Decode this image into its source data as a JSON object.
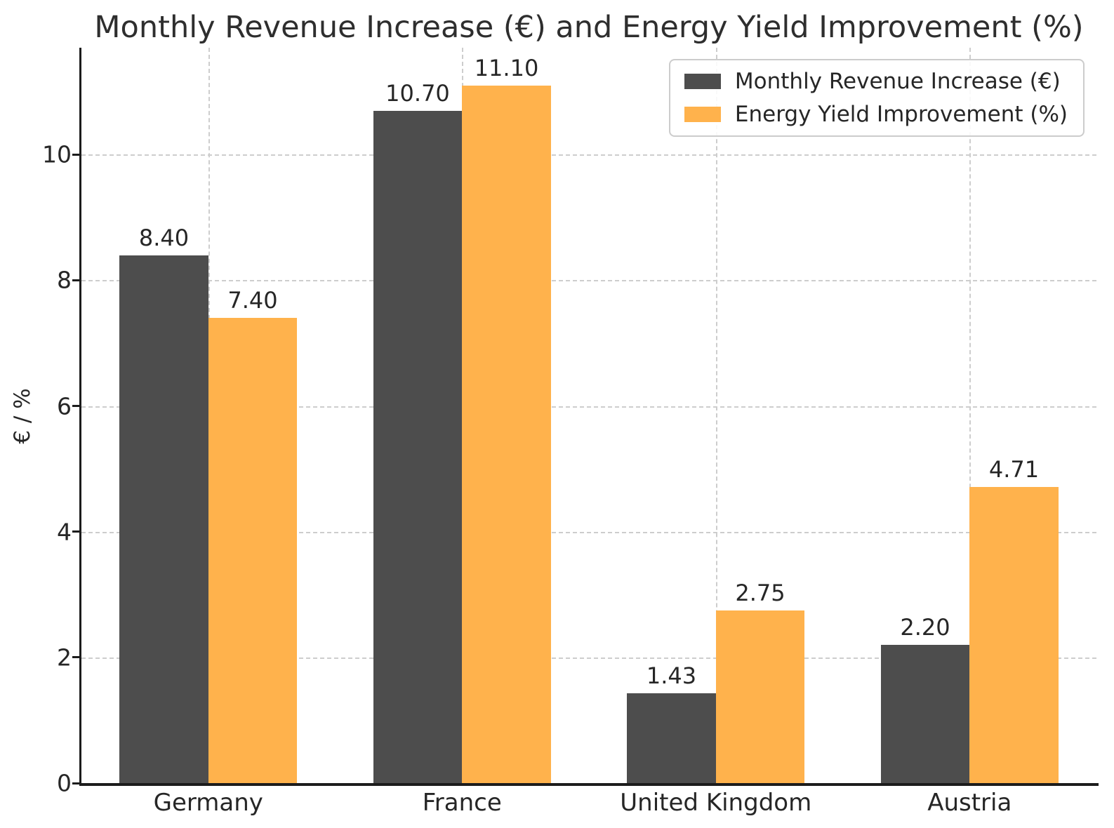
{
  "chart_data": {
    "type": "bar",
    "title": "Monthly Revenue Increase (€) and Energy Yield Improvement (%)",
    "xlabel": "",
    "ylabel": "€ / %",
    "categories": [
      "Germany",
      "France",
      "United Kingdom",
      "Austria"
    ],
    "series": [
      {
        "name": "Monthly Revenue Increase (€)",
        "color": "#4d4d4d",
        "values": [
          8.4,
          10.7,
          1.43,
          2.2
        ]
      },
      {
        "name": "Energy Yield Improvement (%)",
        "color": "#ffb24c",
        "values": [
          7.4,
          11.1,
          2.75,
          4.71
        ]
      }
    ],
    "yticks": [
      0,
      2,
      4,
      6,
      8,
      10
    ],
    "ylim": [
      0,
      11.7
    ],
    "bar_width_fraction": 0.35,
    "grid": "both-dashed",
    "gridline_color": "#cdcdcd",
    "spine_color": "#1c1c1c",
    "text_color": "#262626",
    "background_color": "#ffffff",
    "legend_position": "upper-right",
    "value_label_decimals": 2
  }
}
